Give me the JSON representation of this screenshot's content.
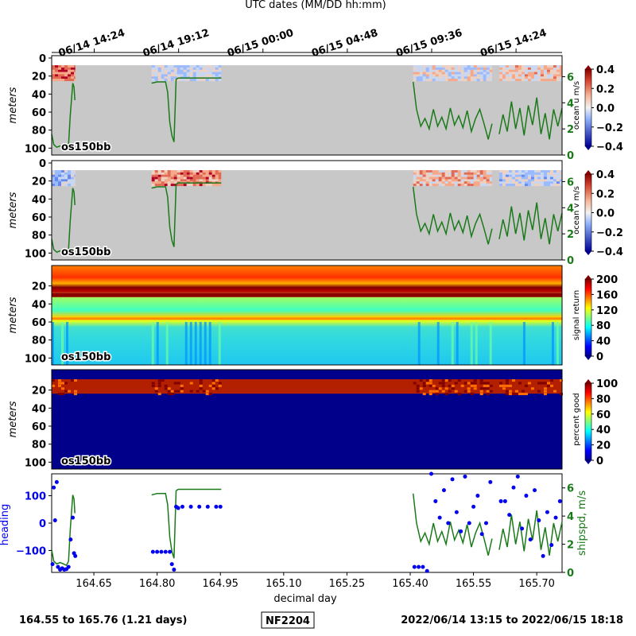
{
  "top_axis": {
    "title": "UTC dates (MM/DD hh:mm)",
    "tick_labels": [
      "06/14 14:24",
      "06/14 19:12",
      "06/15 00:00",
      "06/15 04:48",
      "06/15 09:36",
      "06/15 14:24"
    ],
    "tick_values": [
      164.6,
      164.8,
      165.0,
      165.2,
      165.4,
      165.6
    ]
  },
  "x_axis": {
    "label": "decimal day",
    "tick_labels": [
      "164.65",
      "164.80",
      "164.95",
      "165.10",
      "165.25",
      "165.40",
      "165.55",
      "165.70"
    ],
    "tick_values": [
      164.65,
      164.8,
      164.95,
      165.1,
      165.25,
      165.4,
      165.55,
      165.7
    ],
    "range": [
      164.55,
      165.76
    ]
  },
  "panels": [
    {
      "id": "ocean-u",
      "ylabel": "meters",
      "instrument": "os150bb",
      "colorbar_label": "ocean u m/s",
      "colorbar_ticks": [
        "0.4",
        "0.2",
        "0.0",
        "−0.2",
        "−0.4"
      ],
      "depth_ticks": [
        "0",
        "20",
        "40",
        "60",
        "80",
        "100"
      ],
      "speed_ticks": [
        "6",
        "4",
        "2",
        "0"
      ],
      "colormap": "coolwarm"
    },
    {
      "id": "ocean-v",
      "ylabel": "meters",
      "instrument": "os150bb",
      "colorbar_label": "ocean v m/s",
      "colorbar_ticks": [
        "0.4",
        "0.2",
        "0.0",
        "−0.2",
        "−0.4"
      ],
      "depth_ticks": [
        "0",
        "20",
        "40",
        "60",
        "80",
        "100"
      ],
      "speed_ticks": [
        "6",
        "4",
        "2",
        "0"
      ],
      "colormap": "coolwarm"
    },
    {
      "id": "signal-return",
      "ylabel": "meters",
      "instrument": "os150bb",
      "colorbar_label": "signal return",
      "colorbar_ticks": [
        "200",
        "160",
        "120",
        "80",
        "40",
        "0"
      ],
      "depth_ticks": [
        "20",
        "40",
        "60",
        "80",
        "100"
      ],
      "colormap": "jet"
    },
    {
      "id": "percent-good",
      "ylabel": "meters",
      "instrument": "os150bb",
      "colorbar_label": "percent good",
      "colorbar_ticks": [
        "100",
        "80",
        "60",
        "40",
        "20",
        "0"
      ],
      "depth_ticks": [
        "20",
        "40",
        "60",
        "80",
        "100"
      ],
      "colormap": "jet"
    }
  ],
  "bottom_panel": {
    "left_label": "heading",
    "right_label": "shipspd, m/s",
    "left_ticks": [
      "100",
      "0",
      "−100"
    ],
    "right_ticks": [
      "6",
      "4",
      "2",
      "0"
    ]
  },
  "footer": {
    "day_range": "164.55 to 165.76 (1.21 days)",
    "cruise_id": "NF2204",
    "date_range": "2022/06/14 13:15 to 2022/06/15 18:18"
  },
  "colors": {
    "speed": "#1a7a1a",
    "heading": "#0000ee",
    "footer_text": "#800080",
    "nodata": "#c8c8c8"
  },
  "chart_data": {
    "type": "line",
    "x_range": [
      164.55,
      165.76
    ],
    "data_segments_decimal_day": [
      [
        164.55,
        164.606
      ],
      [
        164.787,
        164.952
      ],
      [
        165.407,
        165.594
      ],
      [
        165.611,
        165.76
      ]
    ],
    "ship_speed": {
      "unit": "m/s",
      "ylim": [
        0,
        7
      ],
      "x": [
        164.55,
        164.555,
        164.562,
        164.57,
        164.578,
        164.585,
        164.59,
        164.594,
        164.6,
        164.603,
        164.605,
        164.787,
        164.8,
        164.82,
        164.825,
        164.83,
        164.835,
        164.84,
        164.845,
        164.85,
        164.9,
        164.952,
        165.407,
        165.415,
        165.425,
        165.435,
        165.445,
        165.455,
        165.465,
        165.475,
        165.485,
        165.495,
        165.505,
        165.515,
        165.525,
        165.535,
        165.545,
        165.555,
        165.565,
        165.575,
        165.585,
        165.594,
        165.611,
        165.62,
        165.63,
        165.64,
        165.65,
        165.66,
        165.67,
        165.68,
        165.69,
        165.7,
        165.71,
        165.72,
        165.73,
        165.74,
        165.75,
        165.76
      ],
      "y": [
        1.6,
        0.8,
        0.6,
        0.7,
        0.6,
        0.5,
        0.8,
        3.0,
        5.5,
        5.2,
        4.2,
        5.5,
        5.6,
        5.6,
        4.8,
        2.5,
        1.5,
        1.0,
        5.8,
        5.9,
        5.9,
        5.9,
        5.6,
        3.5,
        2.2,
        2.8,
        2.0,
        3.5,
        2.2,
        2.9,
        2.0,
        3.6,
        2.3,
        3.0,
        2.1,
        3.4,
        1.8,
        2.8,
        3.5,
        2.4,
        1.2,
        2.4,
        1.6,
        3.1,
        1.8,
        4.1,
        2.0,
        3.6,
        1.5,
        3.8,
        2.3,
        4.4,
        1.6,
        3.2,
        1.2,
        3.5,
        2.2,
        3.6
      ]
    },
    "heading": {
      "unit": "degrees",
      "ylim": [
        -180,
        180
      ],
      "x": [
        164.552,
        164.555,
        164.558,
        164.562,
        164.565,
        164.57,
        164.575,
        164.58,
        164.585,
        164.59,
        164.595,
        164.6,
        164.603,
        164.606,
        164.79,
        164.8,
        164.81,
        164.82,
        164.83,
        164.835,
        164.84,
        164.845,
        164.85,
        164.86,
        164.88,
        164.9,
        164.92,
        164.94,
        164.95,
        165.41,
        165.42,
        165.43,
        165.44,
        165.45,
        165.46,
        165.47,
        165.48,
        165.49,
        165.5,
        165.51,
        165.52,
        165.53,
        165.54,
        165.55,
        165.56,
        165.57,
        165.58,
        165.59,
        165.615,
        165.625,
        165.635,
        165.645,
        165.655,
        165.665,
        165.675,
        165.685,
        165.695,
        165.705,
        165.715,
        165.725,
        165.735,
        165.745,
        165.755
      ],
      "y": [
        -150,
        130,
        10,
        150,
        -160,
        -170,
        -165,
        -170,
        -168,
        -160,
        -60,
        20,
        -110,
        -120,
        -105,
        -105,
        -105,
        -105,
        -105,
        -150,
        -170,
        60,
        55,
        60,
        60,
        60,
        60,
        60,
        60,
        -160,
        -160,
        -160,
        -175,
        180,
        80,
        20,
        120,
        0,
        160,
        40,
        -30,
        170,
        0,
        60,
        100,
        -40,
        0,
        150,
        80,
        80,
        30,
        130,
        170,
        -20,
        100,
        -60,
        120,
        10,
        -120,
        40,
        -80,
        20,
        80
      ]
    },
    "ocean_u_colorbar_range": [
      -0.4,
      0.4
    ],
    "ocean_v_colorbar_range": [
      -0.4,
      0.4
    ],
    "signal_return_colorbar_range": [
      0,
      200
    ],
    "percent_good_colorbar_range": [
      0,
      100
    ],
    "depth_range_m": [
      0,
      105
    ]
  }
}
